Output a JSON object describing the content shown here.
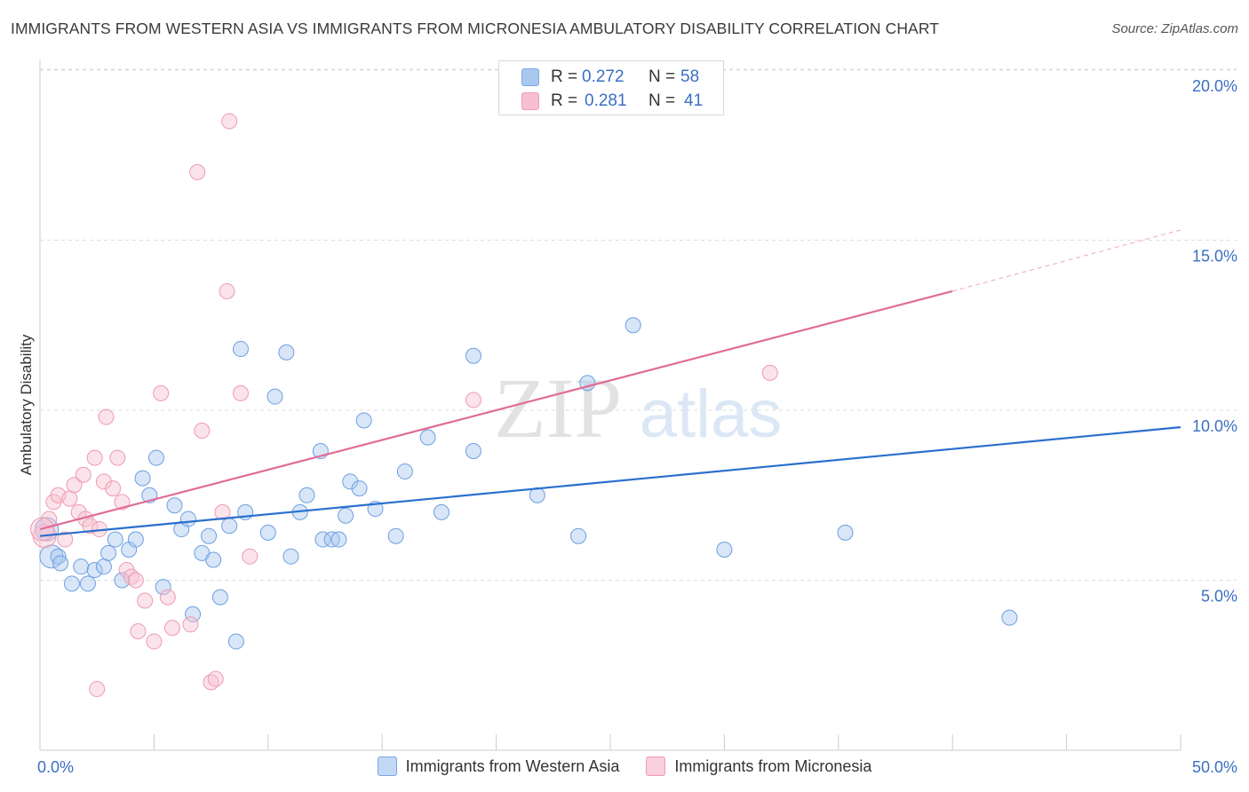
{
  "title": "IMMIGRANTS FROM WESTERN ASIA VS IMMIGRANTS FROM MICRONESIA AMBULATORY DISABILITY CORRELATION CHART",
  "source": "Source: ZipAtlas.com",
  "watermark": {
    "zip": "ZIP",
    "atlas": "atlas"
  },
  "stats": [
    {
      "r_label": "R =",
      "r_value": "0.272",
      "n_label": "N =",
      "n_value": "58",
      "color": "#a9c8f0",
      "border": "#7aa7e0"
    },
    {
      "r_label": "R =",
      "r_value": "0.281",
      "n_label": "N =",
      "n_value": "41",
      "color": "#f7c0d0",
      "border": "#ee9ab3"
    }
  ],
  "legend": [
    {
      "label": "Immigrants from Western Asia",
      "color": "#c3d8f4",
      "border": "#7aa7e0"
    },
    {
      "label": "Immigrants from Micronesia",
      "color": "#fad0dc",
      "border": "#ee9ab3"
    }
  ],
  "chart_data": {
    "type": "scatter",
    "xlabel": "",
    "ylabel": "Ambulatory Disability",
    "xlim": [
      0,
      50
    ],
    "ylim": [
      0,
      20.5
    ],
    "x_tick_labels": [
      {
        "value": 0,
        "label": "0.0%"
      },
      {
        "value": 50,
        "label": "50.0%"
      }
    ],
    "y_tick_labels": [
      {
        "value": 5,
        "label": "5.0%"
      },
      {
        "value": 10,
        "label": "10.0%"
      },
      {
        "value": 15,
        "label": "15.0%"
      },
      {
        "value": 20,
        "label": "20.0%"
      }
    ],
    "grid": "horizontal dashed",
    "legend_position": "bottom",
    "series": [
      {
        "name": "Immigrants from Western Asia",
        "color": "#a9c8f0",
        "stroke": "#6d9fe0",
        "line_color": "#2a6fce",
        "trend": {
          "x": [
            0,
            50
          ],
          "y": [
            6.3,
            9.5
          ]
        },
        "points": [
          [
            0.3,
            6.5
          ],
          [
            0.5,
            5.7
          ],
          [
            0.8,
            5.7
          ],
          [
            0.9,
            5.5
          ],
          [
            1.4,
            4.9
          ],
          [
            1.8,
            5.4
          ],
          [
            2.1,
            4.9
          ],
          [
            2.4,
            5.3
          ],
          [
            2.8,
            5.4
          ],
          [
            3.0,
            5.8
          ],
          [
            3.3,
            6.2
          ],
          [
            3.6,
            5.0
          ],
          [
            3.9,
            5.9
          ],
          [
            4.2,
            6.2
          ],
          [
            4.5,
            8.0
          ],
          [
            4.8,
            7.5
          ],
          [
            5.1,
            8.6
          ],
          [
            5.4,
            4.8
          ],
          [
            5.9,
            7.2
          ],
          [
            6.2,
            6.5
          ],
          [
            6.5,
            6.8
          ],
          [
            6.7,
            4.0
          ],
          [
            7.1,
            5.8
          ],
          [
            7.4,
            6.3
          ],
          [
            7.6,
            5.6
          ],
          [
            7.9,
            4.5
          ],
          [
            8.3,
            6.6
          ],
          [
            8.6,
            3.2
          ],
          [
            8.8,
            11.8
          ],
          [
            9.0,
            7.0
          ],
          [
            10.0,
            6.4
          ],
          [
            10.3,
            10.4
          ],
          [
            10.8,
            11.7
          ],
          [
            11.0,
            5.7
          ],
          [
            11.4,
            7.0
          ],
          [
            11.7,
            7.5
          ],
          [
            12.3,
            8.8
          ],
          [
            12.4,
            6.2
          ],
          [
            12.8,
            6.2
          ],
          [
            13.1,
            6.2
          ],
          [
            13.4,
            6.9
          ],
          [
            13.6,
            7.9
          ],
          [
            14.0,
            7.7
          ],
          [
            14.2,
            9.7
          ],
          [
            14.7,
            7.1
          ],
          [
            15.6,
            6.3
          ],
          [
            16.0,
            8.2
          ],
          [
            17.0,
            9.2
          ],
          [
            17.6,
            7.0
          ],
          [
            19.0,
            11.6
          ],
          [
            19.0,
            8.8
          ],
          [
            21.8,
            7.5
          ],
          [
            23.6,
            6.3
          ],
          [
            24.0,
            10.8
          ],
          [
            26.0,
            12.5
          ],
          [
            30.0,
            5.9
          ],
          [
            35.3,
            6.4
          ],
          [
            42.5,
            3.9
          ]
        ]
      },
      {
        "name": "Immigrants from Micronesia",
        "color": "#f7c0d0",
        "stroke": "#ee9ab3",
        "line_color": "#e06d97",
        "trend": {
          "x": [
            0,
            40
          ],
          "y": [
            6.5,
            13.5
          ]
        },
        "trend_extension": {
          "x": [
            40,
            50
          ],
          "y": [
            13.5,
            15.3
          ]
        },
        "points": [
          [
            0.2,
            6.3
          ],
          [
            0.4,
            6.8
          ],
          [
            0.6,
            7.3
          ],
          [
            0.8,
            7.5
          ],
          [
            1.1,
            6.2
          ],
          [
            1.3,
            7.4
          ],
          [
            1.5,
            7.8
          ],
          [
            1.7,
            7.0
          ],
          [
            1.9,
            8.1
          ],
          [
            2.0,
            6.8
          ],
          [
            2.2,
            6.6
          ],
          [
            2.4,
            8.6
          ],
          [
            2.6,
            6.5
          ],
          [
            2.8,
            7.9
          ],
          [
            2.5,
            1.8
          ],
          [
            2.9,
            9.8
          ],
          [
            3.2,
            7.7
          ],
          [
            3.4,
            8.6
          ],
          [
            3.6,
            7.3
          ],
          [
            3.8,
            5.3
          ],
          [
            4.0,
            5.1
          ],
          [
            4.2,
            5.0
          ],
          [
            4.3,
            3.5
          ],
          [
            4.6,
            4.4
          ],
          [
            5.0,
            3.2
          ],
          [
            5.3,
            10.5
          ],
          [
            5.6,
            4.5
          ],
          [
            5.8,
            3.6
          ],
          [
            6.6,
            3.7
          ],
          [
            6.9,
            17.0
          ],
          [
            7.1,
            9.4
          ],
          [
            7.5,
            2.0
          ],
          [
            7.7,
            2.1
          ],
          [
            8.0,
            7.0
          ],
          [
            8.2,
            13.5
          ],
          [
            8.3,
            18.5
          ],
          [
            8.8,
            10.5
          ],
          [
            9.2,
            5.7
          ],
          [
            19.0,
            10.3
          ],
          [
            32.0,
            11.1
          ],
          [
            0.1,
            6.5
          ]
        ]
      }
    ]
  }
}
